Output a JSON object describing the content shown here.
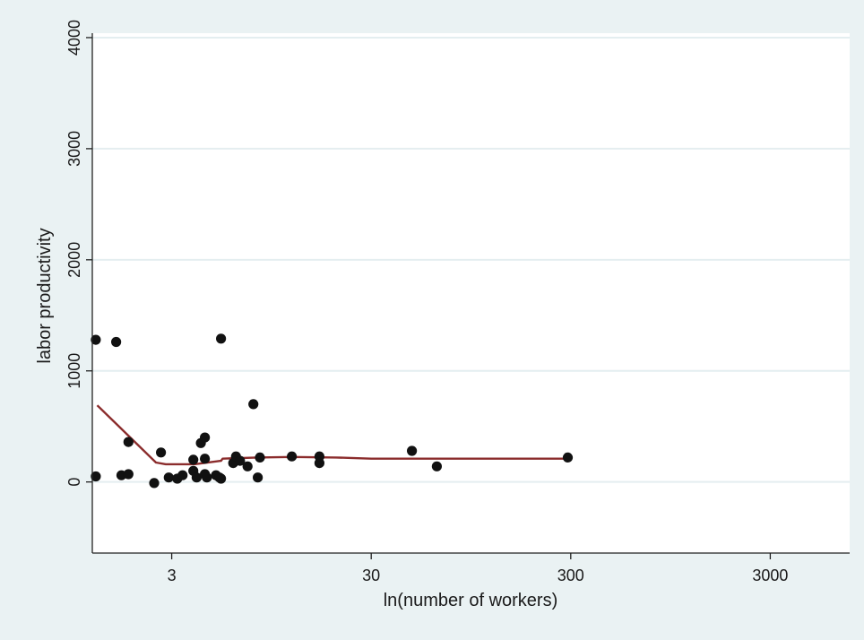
{
  "colors": {
    "outer_bg": "#eaf2f3",
    "plot_bg": "#ffffff",
    "grid": "#e4eef0",
    "points": "#111111",
    "fit_line": "#8b2c2c"
  },
  "chart_data": {
    "type": "scatter",
    "title": "",
    "xlabel": "ln(number of workers)",
    "ylabel": "labor productivity",
    "x_scale": "log",
    "xlim": [
      1.2,
      7500
    ],
    "ylim": [
      -640,
      4040
    ],
    "x_ticks": [
      3,
      30,
      300,
      3000
    ],
    "x_tick_labels": [
      "3",
      "30",
      "300",
      "3000"
    ],
    "y_ticks": [
      0,
      1000,
      2000,
      3000,
      4000
    ],
    "y_tick_labels": [
      "0",
      "1000",
      "2000",
      "3000",
      "4000"
    ],
    "grid": true,
    "legend": "none",
    "series": [
      {
        "type": "scatter",
        "points": [
          {
            "x": 1.25,
            "y": 1280
          },
          {
            "x": 1.25,
            "y": 50
          },
          {
            "x": 1.58,
            "y": 1260
          },
          {
            "x": 1.68,
            "y": 60
          },
          {
            "x": 1.82,
            "y": 360
          },
          {
            "x": 1.82,
            "y": 70
          },
          {
            "x": 2.45,
            "y": -10
          },
          {
            "x": 2.65,
            "y": 265
          },
          {
            "x": 2.9,
            "y": 40
          },
          {
            "x": 3.2,
            "y": 30
          },
          {
            "x": 3.4,
            "y": 60
          },
          {
            "x": 3.85,
            "y": 200
          },
          {
            "x": 3.85,
            "y": 100
          },
          {
            "x": 4.0,
            "y": 40
          },
          {
            "x": 4.2,
            "y": 350
          },
          {
            "x": 4.4,
            "y": 400
          },
          {
            "x": 4.4,
            "y": 210
          },
          {
            "x": 4.4,
            "y": 70
          },
          {
            "x": 4.5,
            "y": 40
          },
          {
            "x": 5.0,
            "y": 60
          },
          {
            "x": 5.2,
            "y": 40
          },
          {
            "x": 5.3,
            "y": 30
          },
          {
            "x": 5.3,
            "y": 1290
          },
          {
            "x": 6.1,
            "y": 170
          },
          {
            "x": 6.3,
            "y": 230
          },
          {
            "x": 6.6,
            "y": 190
          },
          {
            "x": 7.2,
            "y": 140
          },
          {
            "x": 7.7,
            "y": 700
          },
          {
            "x": 8.1,
            "y": 40
          },
          {
            "x": 8.3,
            "y": 220
          },
          {
            "x": 12.0,
            "y": 230
          },
          {
            "x": 16.5,
            "y": 170
          },
          {
            "x": 16.5,
            "y": 230
          },
          {
            "x": 48,
            "y": 280
          },
          {
            "x": 64,
            "y": 140
          },
          {
            "x": 290,
            "y": 220
          }
        ]
      },
      {
        "type": "line",
        "points": [
          {
            "x": 1.27,
            "y": 690
          },
          {
            "x": 2.5,
            "y": 175
          },
          {
            "x": 2.8,
            "y": 160
          },
          {
            "x": 3.9,
            "y": 160
          },
          {
            "x": 5.3,
            "y": 190
          },
          {
            "x": 5.4,
            "y": 210
          },
          {
            "x": 8.0,
            "y": 220
          },
          {
            "x": 12,
            "y": 225
          },
          {
            "x": 20,
            "y": 220
          },
          {
            "x": 30,
            "y": 210
          },
          {
            "x": 100,
            "y": 210
          },
          {
            "x": 290,
            "y": 210
          }
        ]
      }
    ]
  }
}
